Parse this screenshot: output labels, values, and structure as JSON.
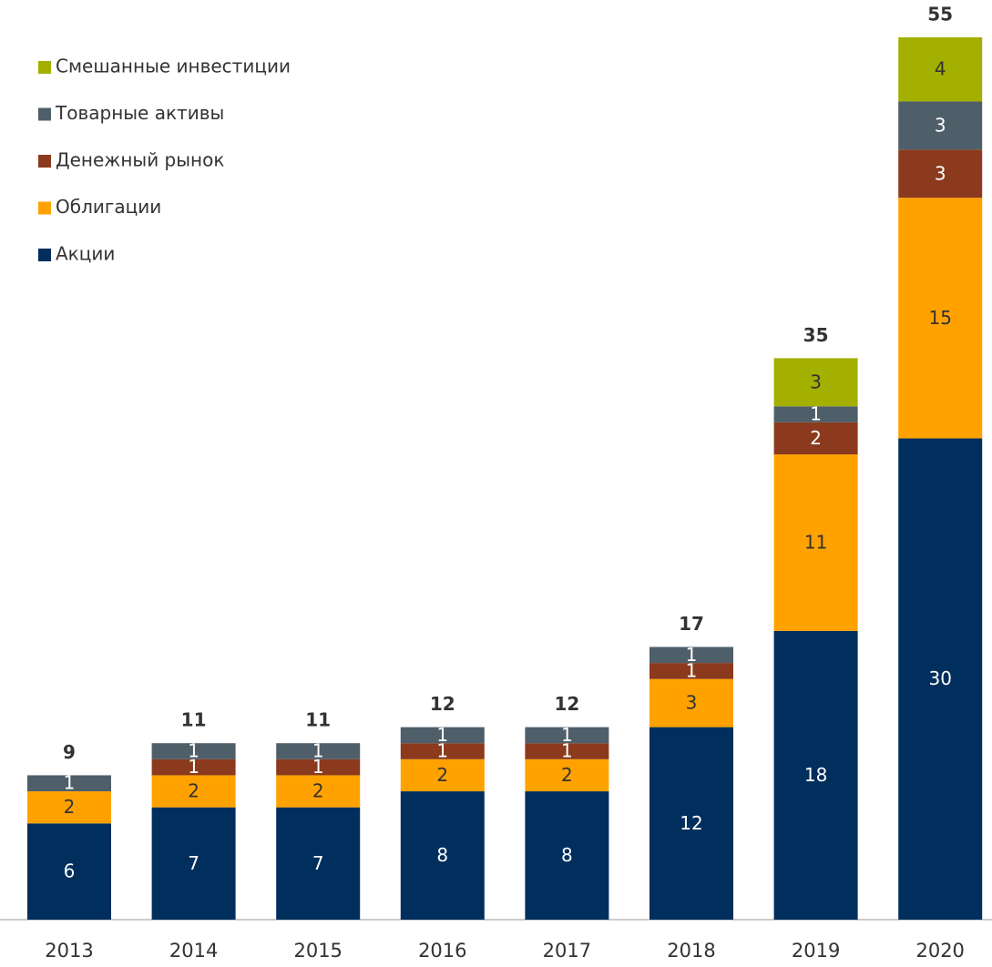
{
  "chart_data": {
    "type": "stacked_bar",
    "categories": [
      "2013",
      "2014",
      "2015",
      "2016",
      "2017",
      "2018",
      "2019",
      "2020"
    ],
    "series": [
      {
        "name": "Акции",
        "color": "#002e5d",
        "label_color": "#ffffff",
        "values": [
          6,
          7,
          7,
          8,
          8,
          12,
          18,
          30
        ]
      },
      {
        "name": "Облигации",
        "color": "#ffa200",
        "label_color": "#333333",
        "values": [
          2,
          2,
          2,
          2,
          2,
          3,
          11,
          15
        ]
      },
      {
        "name": "Денежный рынок",
        "color": "#8b3a1e",
        "label_color": "#ffffff",
        "values": [
          null,
          1,
          1,
          1,
          1,
          1,
          2,
          3
        ]
      },
      {
        "name": "Товарные активы",
        "color": "#4f5f6a",
        "label_color": "#ffffff",
        "values": [
          1,
          1,
          1,
          1,
          1,
          1,
          1,
          3
        ]
      },
      {
        "name": "Смешанные инвестиции",
        "color": "#a3b000",
        "label_color": "#333333",
        "values": [
          null,
          null,
          null,
          null,
          null,
          null,
          3,
          4
        ]
      }
    ],
    "totals": [
      9,
      11,
      11,
      12,
      12,
      17,
      35,
      55
    ]
  }
}
